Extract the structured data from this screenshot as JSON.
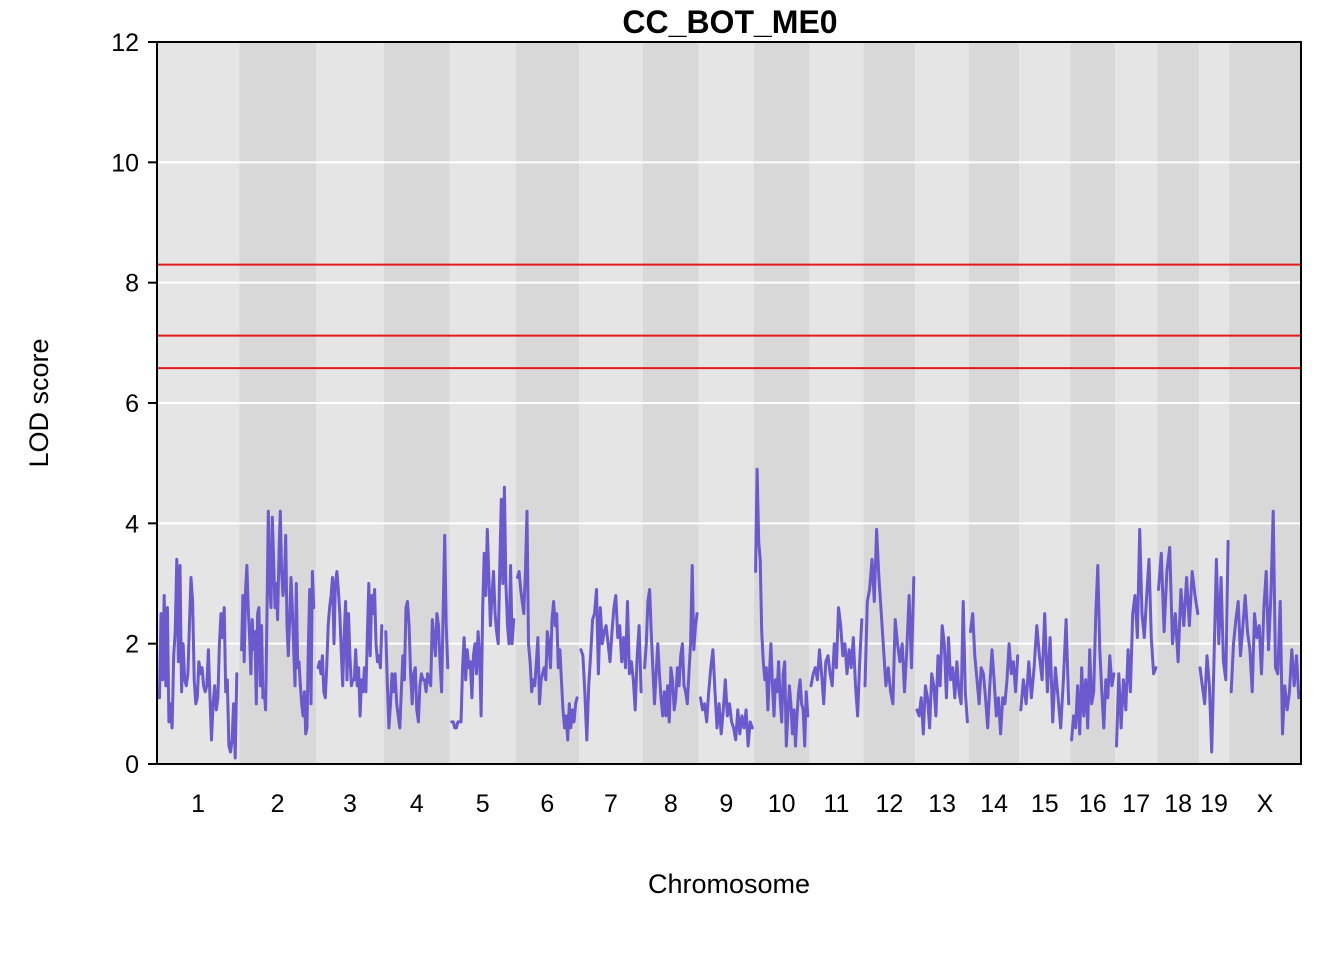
{
  "chart_data": {
    "type": "line",
    "title": "CC_BOT_ME0",
    "xlabel": "Chromosome",
    "ylabel": "LOD score",
    "ylim": [
      0,
      12
    ],
    "yticks": [
      0,
      2,
      4,
      6,
      8,
      10,
      12
    ],
    "grid": true,
    "line_color": "#6a5acd",
    "threshold_color": "#e31a1c",
    "thresholds": [
      8.3,
      7.12,
      6.58
    ],
    "chromosomes": [
      {
        "label": "1",
        "band": "light",
        "start": 0.0,
        "end": 0.0719
      },
      {
        "label": "2",
        "band": "dark",
        "start": 0.0719,
        "end": 0.139
      },
      {
        "label": "3",
        "band": "light",
        "start": 0.139,
        "end": 0.1983
      },
      {
        "label": "4",
        "band": "dark",
        "start": 0.1983,
        "end": 0.2559
      },
      {
        "label": "5",
        "band": "light",
        "start": 0.2559,
        "end": 0.3135
      },
      {
        "label": "6",
        "band": "dark",
        "start": 0.3135,
        "end": 0.3689
      },
      {
        "label": "7",
        "band": "light",
        "start": 0.3689,
        "end": 0.4248
      },
      {
        "label": "8",
        "band": "dark",
        "start": 0.4248,
        "end": 0.4736
      },
      {
        "label": "9",
        "band": "light",
        "start": 0.4736,
        "end": 0.5218
      },
      {
        "label": "10",
        "band": "dark",
        "start": 0.5218,
        "end": 0.5703
      },
      {
        "label": "11",
        "band": "light",
        "start": 0.5703,
        "end": 0.6175
      },
      {
        "label": "12",
        "band": "dark",
        "start": 0.6175,
        "end": 0.6629
      },
      {
        "label": "13",
        "band": "light",
        "start": 0.6629,
        "end": 0.7098
      },
      {
        "label": "14",
        "band": "dark",
        "start": 0.7098,
        "end": 0.7537
      },
      {
        "label": "15",
        "band": "light",
        "start": 0.7537,
        "end": 0.7983
      },
      {
        "label": "16",
        "band": "dark",
        "start": 0.7983,
        "end": 0.8376
      },
      {
        "label": "17",
        "band": "light",
        "start": 0.8376,
        "end": 0.8743
      },
      {
        "label": "18",
        "band": "dark",
        "start": 0.8743,
        "end": 0.9109
      },
      {
        "label": "19",
        "band": "light",
        "start": 0.9109,
        "end": 0.9371
      },
      {
        "label": "X",
        "band": "dark",
        "start": 0.9371,
        "end": 1.0
      }
    ],
    "series": [
      {
        "values_by_chromosome": [
          [
            1.1,
            2.5,
            1.4,
            2.8,
            1.3,
            2.6,
            0.7,
            1.0,
            0.6,
            1.8,
            2.2,
            3.4,
            1.7,
            3.3,
            1.2,
            2.0,
            1.4,
            1.3,
            1.5,
            2.3,
            3.1,
            2.7,
            1.4,
            1.0,
            1.1,
            1.7,
            1.5,
            1.6,
            1.3,
            1.2,
            1.3,
            1.9,
            1.1,
            0.4,
            1.0,
            1.3,
            0.9,
            1.1,
            2.0,
            2.5,
            2.1,
            2.6,
            1.2,
            1.4,
            0.3,
            0.2,
            0.4,
            1.0,
            0.1,
            1.5
          ],
          [
            1.9,
            2.8,
            1.7,
            2.9,
            3.3,
            2.6,
            2.1,
            1.5,
            2.4,
            1.9,
            2.2,
            1.0,
            2.5,
            2.6,
            1.3,
            2.3,
            1.1,
            1.2,
            0.9,
            2.4,
            4.2,
            3.0,
            2.6,
            4.1,
            3.4,
            2.6,
            3.0,
            2.4,
            3.5,
            4.2,
            3.2,
            2.8,
            3.0,
            3.8,
            2.3,
            1.8,
            2.4,
            3.1,
            2.6,
            1.9,
            1.3,
            3.0,
            1.6,
            1.7,
            1.3,
            1.0,
            0.8,
            1.2,
            0.5,
            0.6,
            2.0,
            2.9,
            1.0,
            3.2,
            2.6
          ],
          [
            1.6,
            1.7,
            1.5,
            1.8,
            1.2,
            1.1,
            1.6,
            2.3,
            2.6,
            2.8,
            3.1,
            2.0,
            3.0,
            3.2,
            2.9,
            2.5,
            1.9,
            1.3,
            2.1,
            2.7,
            1.4,
            2.5,
            1.8,
            1.3,
            1.4,
            1.4,
            1.9,
            1.3,
            1.6,
            0.8,
            1.4,
            1.2,
            1.6,
            1.2,
            2.1,
            3.0,
            1.8,
            2.8,
            2.5,
            2.9,
            2.0,
            1.7,
            1.8,
            1.6,
            2.3
          ],
          [
            2.2,
            1.3,
            0.6,
            1.0,
            1.5,
            1.2,
            1.5,
            1.0,
            0.8,
            0.6,
            1.2,
            1.8,
            1.4,
            2.6,
            2.7,
            2.3,
            1.5,
            1.0,
            1.5,
            1.6,
            0.9,
            0.7,
            1.3,
            1.5,
            1.4,
            1.4,
            1.2,
            1.5,
            1.4,
            1.3,
            2.4,
            2.1,
            1.8,
            2.5,
            2.3,
            1.7,
            1.2,
            2.5,
            3.8,
            2.3,
            1.6
          ],
          [
            0.7,
            0.7,
            0.6,
            0.6,
            0.7,
            0.7,
            0.7,
            1.6,
            2.1,
            1.4,
            1.9,
            1.6,
            1.7,
            1.1,
            1.8,
            2.0,
            1.5,
            2.2,
            1.8,
            0.8,
            2.6,
            3.5,
            2.8,
            3.9,
            3.1,
            2.3,
            2.8,
            3.2,
            2.5,
            2.2,
            2.0,
            3.2,
            4.4,
            3.0,
            4.6,
            3.0,
            2.3,
            2.0,
            3.3,
            2.0,
            2.4
          ],
          [
            3.1,
            3.2,
            2.9,
            2.7,
            2.5,
            3.2,
            4.2,
            2.0,
            1.7,
            1.2,
            1.4,
            1.3,
            1.7,
            2.1,
            1.0,
            1.4,
            1.5,
            1.6,
            1.4,
            2.2,
            2.0,
            1.6,
            2.4,
            2.7,
            2.3,
            2.5,
            1.6,
            1.9,
            1.4,
            0.9,
            0.6,
            0.8,
            0.4,
            1.0,
            0.6,
            0.9,
            0.7,
            1.0,
            1.1
          ],
          [
            1.9,
            1.8,
            1.2,
            0.4,
            1.3,
            1.8,
            2.4,
            2.5,
            2.9,
            1.5,
            2.6,
            2.0,
            2.2,
            2.3,
            2.0,
            1.7,
            2.2,
            2.6,
            2.8,
            2.1,
            2.3,
            1.7,
            2.1,
            1.6,
            2.7,
            1.5,
            1.7,
            1.4,
            0.9,
            1.8,
            2.3,
            1.2
          ],
          [
            1.6,
            2.0,
            2.7,
            2.9,
            2.2,
            1.6,
            1.0,
            1.5,
            2.0,
            1.5,
            1.1,
            0.8,
            1.2,
            0.8,
            1.3,
            0.7,
            1.6,
            1.4,
            0.9,
            1.1,
            1.6,
            1.3,
            1.8,
            2.0,
            1.3,
            1.2,
            1.0,
            1.5,
            2.0,
            3.3,
            1.9,
            2.3,
            2.5
          ],
          [
            1.1,
            0.9,
            1.0,
            0.7,
            1.2,
            1.6,
            1.9,
            1.2,
            0.6,
            1.0,
            0.5,
            0.9,
            1.4,
            0.8,
            1.0,
            0.7,
            0.6,
            0.4,
            0.9,
            0.5,
            0.8,
            0.6,
            0.9,
            0.3,
            0.7,
            0.6
          ],
          [
            3.2,
            4.9,
            3.7,
            3.4,
            2.2,
            1.7,
            1.4,
            1.6,
            0.9,
            1.5,
            2.0,
            1.3,
            0.8,
            1.4,
            1.2,
            1.7,
            1.1,
            0.7,
            1.5,
            1.7,
            0.3,
            0.8,
            1.3,
            1.0,
            0.5,
            0.9,
            0.3,
            0.8,
            1.2,
            1.4,
            1.0,
            0.9,
            0.3,
            1.2,
            0.8
          ],
          [
            1.3,
            1.5,
            1.6,
            1.4,
            1.9,
            1.5,
            1.0,
            1.7,
            1.8,
            1.5,
            1.3,
            2.0,
            1.6,
            2.6,
            2.3,
            1.8,
            2.0,
            1.5,
            1.9,
            1.6,
            2.1,
            1.3,
            0.8,
            1.7,
            2.4
          ],
          [
            1.3,
            2.7,
            2.9,
            3.4,
            2.7,
            3.9,
            3.1,
            2.5,
            1.9,
            1.3,
            1.6,
            1.2,
            1.0,
            2.4,
            2.0,
            1.7,
            2.0,
            1.2,
            1.9,
            2.8,
            1.6,
            3.1
          ],
          [
            0.9,
            0.8,
            1.1,
            0.5,
            1.3,
            1.1,
            0.6,
            1.5,
            1.3,
            0.8,
            1.8,
            1.3,
            2.3,
            2.0,
            1.1,
            2.1,
            1.4,
            1.6,
            1.1,
            1.7,
            1.2,
            1.0,
            2.7,
            1.2,
            0.7
          ],
          [
            2.2,
            2.5,
            1.8,
            1.4,
            1.0,
            1.6,
            1.5,
            1.1,
            0.6,
            1.3,
            1.9,
            1.4,
            0.8,
            1.1,
            0.5,
            1.1,
            1.0,
            1.4,
            2.0,
            1.5,
            1.7,
            1.2,
            1.8
          ],
          [
            0.9,
            1.4,
            1.0,
            1.7,
            1.1,
            1.6,
            2.3,
            1.8,
            1.4,
            2.5,
            1.2,
            2.1,
            0.7,
            1.6,
            1.1,
            0.6,
            1.4,
            2.4,
            1.0
          ],
          [
            0.4,
            0.8,
            0.6,
            1.3,
            0.5,
            1.6,
            0.8,
            1.4,
            0.6,
            1.9,
            1.0,
            1.2,
            2.5,
            3.3,
            1.9,
            1.2,
            0.6,
            1.4,
            1.1,
            1.8,
            1.3,
            1.5
          ],
          [
            0.3,
            1.5,
            0.6,
            1.4,
            0.9,
            1.9,
            1.2,
            2.5,
            2.8,
            2.1,
            3.9,
            2.5,
            2.1,
            2.8,
            3.4,
            2.1,
            1.5,
            1.6
          ],
          [
            2.9,
            3.5,
            2.2,
            3.2,
            3.6,
            2.0,
            2.5,
            1.7,
            2.9,
            2.3,
            3.1,
            2.3,
            3.2,
            2.8,
            2.5
          ],
          [
            1.6,
            1.3,
            1.0,
            1.8,
            1.3,
            0.2,
            1.8,
            3.4,
            2.0,
            3.1,
            1.7,
            1.4,
            3.7
          ],
          [
            1.2,
            2.0,
            2.4,
            2.7,
            1.8,
            2.3,
            2.8,
            2.2,
            1.9,
            1.2,
            2.5,
            2.1,
            2.3,
            1.5,
            2.6,
            3.2,
            1.9,
            2.8,
            4.2,
            1.6,
            1.5,
            2.7,
            0.5,
            1.3,
            0.9,
            1.2,
            1.9,
            1.3,
            1.8,
            1.1
          ]
        ]
      }
    ]
  }
}
